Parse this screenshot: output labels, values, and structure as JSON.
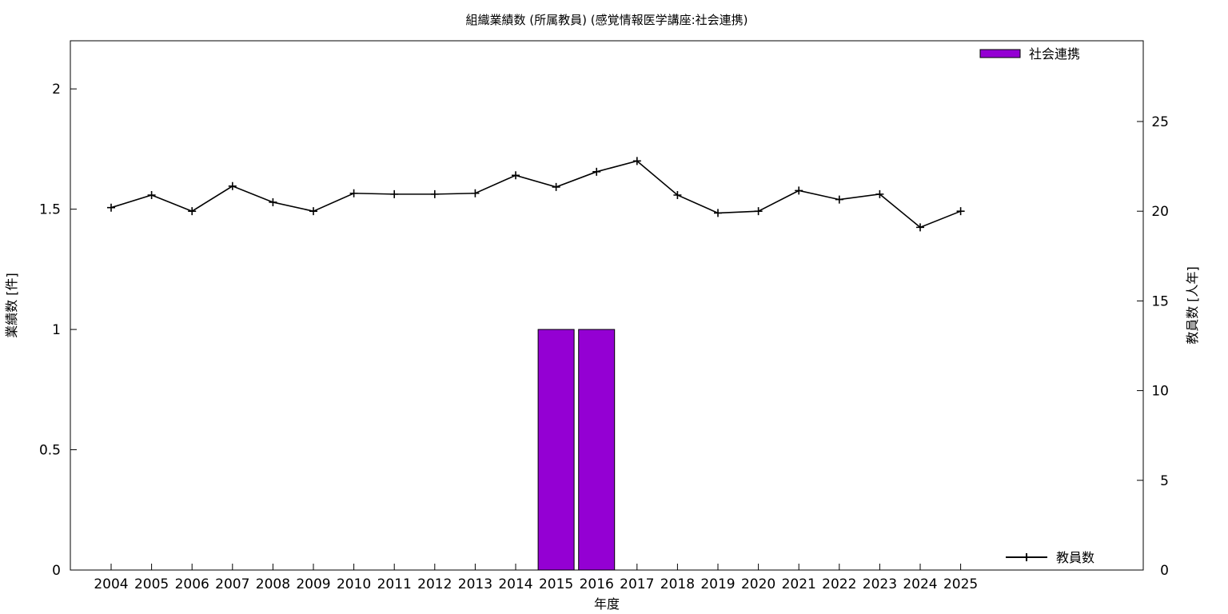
{
  "chart_data": {
    "type": "bar",
    "title": "組織業績数 (所属教員) (感覚情報医学講座:社会連携)",
    "xlabel": "年度",
    "ylabel": "業績数 [件]",
    "y2label": "教員数 [人年]",
    "categories": [
      "2004",
      "2005",
      "2006",
      "2007",
      "2008",
      "2009",
      "2010",
      "2011",
      "2012",
      "2013",
      "2014",
      "2015",
      "2016",
      "2017",
      "2018",
      "2019",
      "2020",
      "2021",
      "2022",
      "2023",
      "2024",
      "2025"
    ],
    "series": [
      {
        "name": "社会連携",
        "kind": "bar",
        "axis": "left",
        "color": "#9400d3",
        "values": [
          0,
          0,
          0,
          0,
          0,
          0,
          0,
          0,
          0,
          0,
          0,
          1,
          1,
          0,
          0,
          0,
          0,
          0,
          0,
          0,
          0,
          0
        ]
      },
      {
        "name": "教員数",
        "kind": "line",
        "axis": "right",
        "color": "#000000",
        "values": [
          20.2,
          20.9,
          20.0,
          21.4,
          20.5,
          20.0,
          21.0,
          20.95,
          20.95,
          21.0,
          22.0,
          21.35,
          22.2,
          22.8,
          20.9,
          19.9,
          20.0,
          21.15,
          20.65,
          20.95,
          19.1,
          20.0
        ]
      }
    ],
    "ylim": [
      0,
      2.2
    ],
    "yticks": [
      0,
      0.5,
      1,
      1.5,
      2
    ],
    "ytick_labels": [
      "0",
      "0.5",
      "1",
      "1.5",
      "2"
    ],
    "y2lim": [
      0,
      29.5
    ],
    "y2ticks": [
      0,
      5,
      10,
      15,
      20,
      25
    ],
    "y2tick_labels": [
      "0",
      "5",
      "10",
      "15",
      "20",
      "25"
    ],
    "grid": false,
    "legend": [
      {
        "label": "社会連携",
        "position": "top-right"
      },
      {
        "label": "教員数",
        "position": "bottom-right"
      }
    ]
  }
}
